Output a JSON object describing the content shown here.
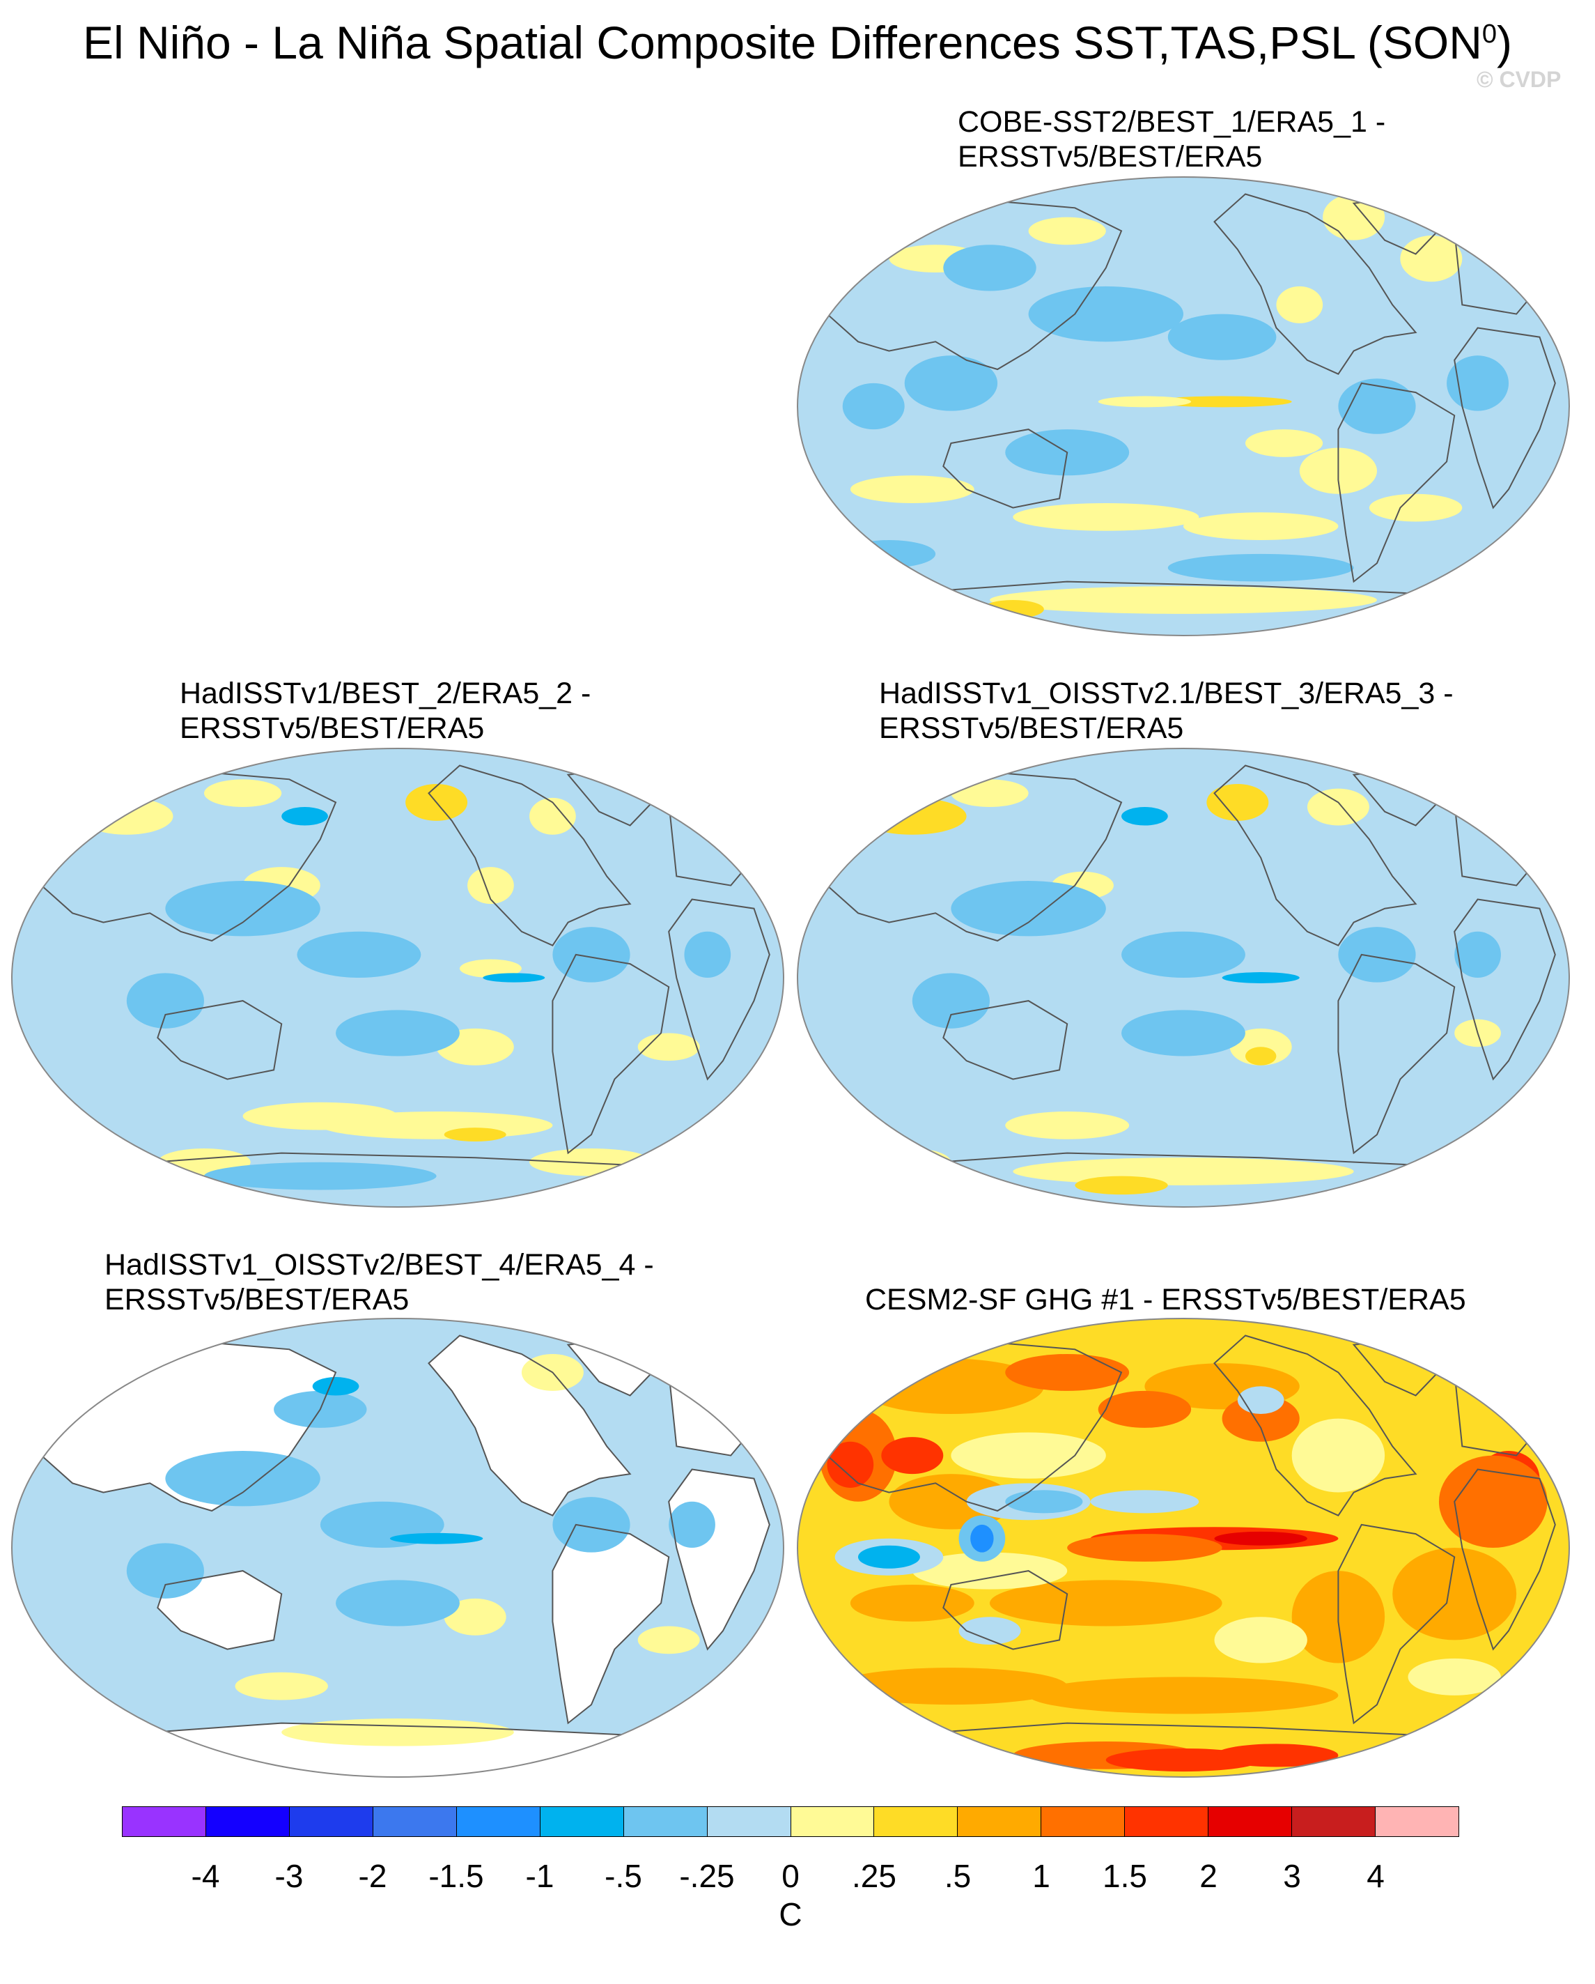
{
  "title": "El Niño - La Niña Spatial Composite Differences SST,TAS,PSL (SON",
  "title_superscript": "0",
  "title_suffix": ")",
  "watermark": "© CVDP",
  "colors": {
    "ocean": "#b3dcf2",
    "land_blank": "#ffffff",
    "coast": "#555555",
    "border": "#888888"
  },
  "panels": [
    {
      "id": "p1",
      "label_line1": "COBE-SST2/BEST_1/ERA5_1 -",
      "label_line2": "ERSSTv5/BEST/ERA5",
      "base": "#b3dcf2",
      "land_fill": "#b3dcf2",
      "patches": [
        [
          "#fffa96",
          0.18,
          0.18,
          0.06,
          0.03
        ],
        [
          "#fffa96",
          0.35,
          0.12,
          0.05,
          0.03
        ],
        [
          "#fffa96",
          0.72,
          0.09,
          0.04,
          0.05
        ],
        [
          "#fffa96",
          0.82,
          0.18,
          0.04,
          0.05
        ],
        [
          "#fffa96",
          0.65,
          0.28,
          0.03,
          0.04
        ],
        [
          "#fedc26",
          0.55,
          0.49,
          0.09,
          0.012
        ],
        [
          "#fffa96",
          0.45,
          0.49,
          0.06,
          0.012
        ],
        [
          "#fffa96",
          0.63,
          0.58,
          0.05,
          0.03
        ],
        [
          "#fffa96",
          0.7,
          0.64,
          0.05,
          0.05
        ],
        [
          "#fffa96",
          0.15,
          0.68,
          0.08,
          0.03
        ],
        [
          "#fffa96",
          0.4,
          0.74,
          0.12,
          0.03
        ],
        [
          "#fffa96",
          0.6,
          0.76,
          0.1,
          0.03
        ],
        [
          "#fffa96",
          0.8,
          0.72,
          0.06,
          0.03
        ],
        [
          "#fffa96",
          0.5,
          0.92,
          0.25,
          0.03
        ],
        [
          "#fedc26",
          0.28,
          0.94,
          0.04,
          0.02
        ],
        [
          "#6ec5f0",
          0.25,
          0.2,
          0.06,
          0.05
        ],
        [
          "#6ec5f0",
          0.4,
          0.3,
          0.1,
          0.06
        ],
        [
          "#6ec5f0",
          0.55,
          0.35,
          0.07,
          0.05
        ],
        [
          "#6ec5f0",
          0.2,
          0.45,
          0.06,
          0.06
        ],
        [
          "#6ec5f0",
          0.75,
          0.5,
          0.05,
          0.06
        ],
        [
          "#6ec5f0",
          0.35,
          0.6,
          0.08,
          0.05
        ],
        [
          "#6ec5f0",
          0.88,
          0.45,
          0.04,
          0.06
        ],
        [
          "#6ec5f0",
          0.1,
          0.5,
          0.04,
          0.05
        ],
        [
          "#6ec5f0",
          0.6,
          0.85,
          0.12,
          0.03
        ],
        [
          "#6ec5f0",
          0.12,
          0.82,
          0.06,
          0.03
        ]
      ]
    },
    {
      "id": "p2",
      "label_line1": "HadISSTv1/BEST_2/ERA5_2 -",
      "label_line2": "ERSSTv5/BEST/ERA5",
      "base": "#b3dcf2",
      "land_fill": "#b3dcf2",
      "patches": [
        [
          "#fffa96",
          0.15,
          0.15,
          0.06,
          0.04
        ],
        [
          "#fffa96",
          0.3,
          0.1,
          0.05,
          0.03
        ],
        [
          "#fedc26",
          0.55,
          0.12,
          0.04,
          0.04
        ],
        [
          "#fffa96",
          0.7,
          0.15,
          0.03,
          0.04
        ],
        [
          "#fffa96",
          0.62,
          0.3,
          0.03,
          0.04
        ],
        [
          "#fffa96",
          0.35,
          0.3,
          0.05,
          0.04
        ],
        [
          "#fffa96",
          0.62,
          0.48,
          0.04,
          0.02
        ],
        [
          "#fffa96",
          0.6,
          0.65,
          0.05,
          0.04
        ],
        [
          "#fffa96",
          0.85,
          0.65,
          0.04,
          0.03
        ],
        [
          "#fffa96",
          0.4,
          0.8,
          0.1,
          0.03
        ],
        [
          "#fffa96",
          0.55,
          0.82,
          0.15,
          0.03
        ],
        [
          "#fedc26",
          0.6,
          0.84,
          0.04,
          0.015
        ],
        [
          "#fffa96",
          0.25,
          0.9,
          0.06,
          0.03
        ],
        [
          "#fffa96",
          0.75,
          0.9,
          0.08,
          0.03
        ],
        [
          "#6ec5f0",
          0.3,
          0.35,
          0.1,
          0.06
        ],
        [
          "#6ec5f0",
          0.45,
          0.45,
          0.08,
          0.05
        ],
        [
          "#6ec5f0",
          0.2,
          0.55,
          0.05,
          0.06
        ],
        [
          "#6ec5f0",
          0.75,
          0.45,
          0.05,
          0.06
        ],
        [
          "#6ec5f0",
          0.5,
          0.62,
          0.08,
          0.05
        ],
        [
          "#6ec5f0",
          0.4,
          0.93,
          0.15,
          0.03
        ],
        [
          "#6ec5f0",
          0.9,
          0.45,
          0.03,
          0.05
        ],
        [
          "#00b2ee",
          0.38,
          0.15,
          0.03,
          0.02
        ],
        [
          "#00b2ee",
          0.65,
          0.5,
          0.04,
          0.01
        ]
      ]
    },
    {
      "id": "p3",
      "label_line1": "HadISSTv1_OISSTv2.1/BEST_3/ERA5_3 -",
      "label_line2": "ERSSTv5/BEST/ERA5",
      "base": "#b3dcf2",
      "land_fill": "#b3dcf2",
      "patches": [
        [
          "#fedc26",
          0.15,
          0.15,
          0.07,
          0.04
        ],
        [
          "#fffa96",
          0.25,
          0.1,
          0.05,
          0.03
        ],
        [
          "#fedc26",
          0.57,
          0.12,
          0.04,
          0.04
        ],
        [
          "#fffa96",
          0.7,
          0.13,
          0.04,
          0.04
        ],
        [
          "#fffa96",
          0.37,
          0.3,
          0.04,
          0.03
        ],
        [
          "#fffa96",
          0.6,
          0.65,
          0.04,
          0.04
        ],
        [
          "#fedc26",
          0.6,
          0.67,
          0.02,
          0.02
        ],
        [
          "#fffa96",
          0.88,
          0.62,
          0.03,
          0.03
        ],
        [
          "#fffa96",
          0.35,
          0.82,
          0.08,
          0.03
        ],
        [
          "#fffa96",
          0.5,
          0.92,
          0.22,
          0.03
        ],
        [
          "#fedc26",
          0.42,
          0.95,
          0.06,
          0.02
        ],
        [
          "#fffa96",
          0.15,
          0.9,
          0.05,
          0.03
        ],
        [
          "#6ec5f0",
          0.3,
          0.35,
          0.1,
          0.06
        ],
        [
          "#6ec5f0",
          0.5,
          0.45,
          0.08,
          0.05
        ],
        [
          "#6ec5f0",
          0.2,
          0.55,
          0.05,
          0.06
        ],
        [
          "#6ec5f0",
          0.75,
          0.45,
          0.05,
          0.06
        ],
        [
          "#6ec5f0",
          0.5,
          0.62,
          0.08,
          0.05
        ],
        [
          "#6ec5f0",
          0.88,
          0.45,
          0.03,
          0.05
        ],
        [
          "#00b2ee",
          0.6,
          0.5,
          0.05,
          0.012
        ],
        [
          "#00b2ee",
          0.45,
          0.15,
          0.03,
          0.02
        ]
      ]
    },
    {
      "id": "p4",
      "label_line1": "HadISSTv1_OISSTv2/BEST_4/ERA5_4 -",
      "label_line2": "ERSSTv5/BEST/ERA5",
      "base": "#b3dcf2",
      "land_fill": "#ffffff",
      "patches": [
        [
          "#fffa96",
          0.6,
          0.65,
          0.04,
          0.04
        ],
        [
          "#fffa96",
          0.7,
          0.12,
          0.04,
          0.04
        ],
        [
          "#fffa96",
          0.35,
          0.8,
          0.06,
          0.03
        ],
        [
          "#fffa96",
          0.5,
          0.9,
          0.15,
          0.03
        ],
        [
          "#fffa96",
          0.12,
          0.88,
          0.05,
          0.03
        ],
        [
          "#fffa96",
          0.85,
          0.7,
          0.04,
          0.03
        ],
        [
          "#6ec5f0",
          0.3,
          0.35,
          0.1,
          0.06
        ],
        [
          "#6ec5f0",
          0.48,
          0.45,
          0.08,
          0.05
        ],
        [
          "#6ec5f0",
          0.2,
          0.55,
          0.05,
          0.06
        ],
        [
          "#6ec5f0",
          0.75,
          0.45,
          0.05,
          0.06
        ],
        [
          "#6ec5f0",
          0.5,
          0.62,
          0.08,
          0.05
        ],
        [
          "#6ec5f0",
          0.88,
          0.45,
          0.03,
          0.05
        ],
        [
          "#6ec5f0",
          0.4,
          0.2,
          0.06,
          0.04
        ],
        [
          "#00b2ee",
          0.55,
          0.48,
          0.06,
          0.012
        ],
        [
          "#00b2ee",
          0.42,
          0.15,
          0.03,
          0.02
        ]
      ]
    },
    {
      "id": "p5",
      "label_line1": "CESM2-SF GHG #1 - ERSSTv5/BEST/ERA5",
      "label_line2": "",
      "base": "#fedc26",
      "land_fill": "#fedc26",
      "patches": [
        [
          "#ffaa00",
          0.2,
          0.15,
          0.12,
          0.06
        ],
        [
          "#ff7000",
          0.35,
          0.12,
          0.08,
          0.04
        ],
        [
          "#ffaa00",
          0.55,
          0.15,
          0.1,
          0.05
        ],
        [
          "#ff7000",
          0.45,
          0.2,
          0.06,
          0.04
        ],
        [
          "#ff7000",
          0.6,
          0.22,
          0.05,
          0.05
        ],
        [
          "#ff7000",
          0.08,
          0.3,
          0.05,
          0.1
        ],
        [
          "#ff3300",
          0.07,
          0.32,
          0.03,
          0.05
        ],
        [
          "#ff3300",
          0.15,
          0.3,
          0.04,
          0.04
        ],
        [
          "#ffaa00",
          0.2,
          0.4,
          0.08,
          0.06
        ],
        [
          "#ff3300",
          0.92,
          0.35,
          0.04,
          0.06
        ],
        [
          "#ff7000",
          0.9,
          0.4,
          0.07,
          0.1
        ],
        [
          "#ffaa00",
          0.85,
          0.6,
          0.08,
          0.1
        ],
        [
          "#ffaa00",
          0.7,
          0.65,
          0.06,
          0.1
        ],
        [
          "#ff3300",
          0.54,
          0.48,
          0.16,
          0.025
        ],
        [
          "#e60000",
          0.6,
          0.48,
          0.06,
          0.015
        ],
        [
          "#ff7000",
          0.45,
          0.5,
          0.1,
          0.03
        ],
        [
          "#ffaa00",
          0.4,
          0.62,
          0.15,
          0.05
        ],
        [
          "#ffaa00",
          0.15,
          0.62,
          0.08,
          0.04
        ],
        [
          "#ffaa00",
          0.2,
          0.8,
          0.15,
          0.04
        ],
        [
          "#ffaa00",
          0.5,
          0.82,
          0.2,
          0.04
        ],
        [
          "#ff7000",
          0.4,
          0.95,
          0.12,
          0.03
        ],
        [
          "#ff3300",
          0.5,
          0.96,
          0.1,
          0.025
        ],
        [
          "#ff3300",
          0.62,
          0.95,
          0.08,
          0.025
        ],
        [
          "#fffa96",
          0.3,
          0.3,
          0.1,
          0.05
        ],
        [
          "#fffa96",
          0.7,
          0.3,
          0.06,
          0.08
        ],
        [
          "#fffa96",
          0.6,
          0.7,
          0.06,
          0.05
        ],
        [
          "#fffa96",
          0.25,
          0.55,
          0.1,
          0.04
        ],
        [
          "#fffa96",
          0.85,
          0.78,
          0.06,
          0.04
        ],
        [
          "#b3dcf2",
          0.3,
          0.4,
          0.08,
          0.04
        ],
        [
          "#6ec5f0",
          0.32,
          0.4,
          0.05,
          0.025
        ],
        [
          "#b3dcf2",
          0.12,
          0.52,
          0.07,
          0.04
        ],
        [
          "#00b2ee",
          0.12,
          0.52,
          0.04,
          0.025
        ],
        [
          "#6ec5f0",
          0.24,
          0.48,
          0.03,
          0.05
        ],
        [
          "#1e90ff",
          0.24,
          0.48,
          0.015,
          0.03
        ],
        [
          "#b3dcf2",
          0.45,
          0.4,
          0.07,
          0.025
        ],
        [
          "#b3dcf2",
          0.6,
          0.18,
          0.03,
          0.03
        ],
        [
          "#b3dcf2",
          0.25,
          0.68,
          0.04,
          0.03
        ]
      ]
    }
  ],
  "colorbar": {
    "colors": [
      "#9933ff",
      "#1400ff",
      "#1e3ced",
      "#3c78ee",
      "#1e90ff",
      "#00b2ee",
      "#6ec5f0",
      "#b3dcf2",
      "#fffa96",
      "#fedc26",
      "#ffaa00",
      "#ff7000",
      "#ff3300",
      "#e60000",
      "#c81e1e",
      "#ffb4b4"
    ],
    "labels": [
      "-4",
      "-3",
      "-2",
      "-1.5",
      "-1",
      "-.5",
      "-.25",
      "0",
      ".25",
      ".5",
      "1",
      "1.5",
      "2",
      "3",
      "4"
    ],
    "units": "C"
  }
}
